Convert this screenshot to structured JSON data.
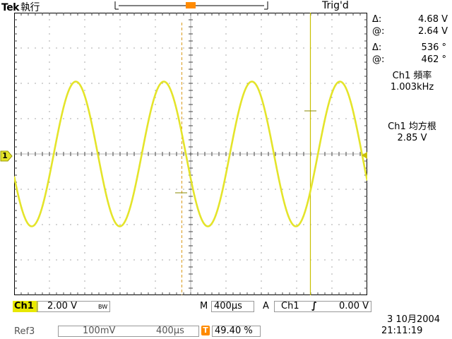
{
  "header": {
    "brand": "Tek",
    "mode": "執行",
    "trigger_state": "Trig'd"
  },
  "channel": {
    "marker": "1",
    "name": "Ch1",
    "scale": "2.00 V",
    "bw_symbol": "BW",
    "color": "#e4e42a"
  },
  "measurements": {
    "delta_volt_symbol": "Δ:",
    "delta_volt": "4.68 V",
    "at_volt_symbol": "@:",
    "at_volt": "2.64 V",
    "delta_phase_symbol": "Δ:",
    "delta_phase": "536 °",
    "at_phase_symbol": "@:",
    "at_phase": "462 °",
    "freq_label": "Ch1 頻率",
    "freq_value": "1.003kHz",
    "rms_label": "Ch1 均方根",
    "rms_value": "2.85 V"
  },
  "timebase": {
    "prefix": "M",
    "value": "400µs"
  },
  "trigger": {
    "prefix": "A",
    "source": "Ch1",
    "slope_symbol": "∫",
    "level": "0.00 V",
    "marker": "T",
    "marker_color": "#ff8a00"
  },
  "date": "3 10月2004",
  "time": "21:11:19",
  "reference": {
    "name": "Ref3",
    "volts": "100mV",
    "time": "400µs"
  },
  "trigger_position": {
    "marker": "T",
    "value": "49.40 %"
  },
  "waveform": {
    "amplitude_divisions": 2.05,
    "cycles_on_screen": 4.01,
    "phase_at_left_deg": 198
  }
}
